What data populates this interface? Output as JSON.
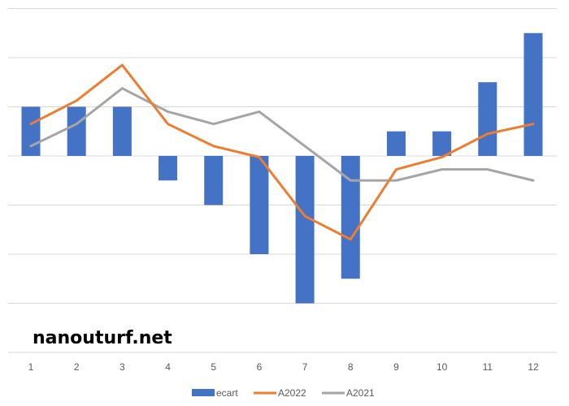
{
  "watermark": "nanouturf.net",
  "chart_data": {
    "type": "bar+line",
    "categories": [
      "1",
      "2",
      "3",
      "4",
      "5",
      "6",
      "7",
      "8",
      "9",
      "10",
      "11",
      "12"
    ],
    "series": [
      {
        "name": "ecart",
        "kind": "bar",
        "color": "#4472C4",
        "values": [
          2,
          2,
          2,
          -1,
          -2,
          -4,
          -6,
          -5,
          1,
          1,
          3,
          5
        ]
      },
      {
        "name": "A2022",
        "kind": "line",
        "color": "#ED7D31",
        "values": [
          1.3,
          2.25,
          3.7,
          1.3,
          0.4,
          -0.05,
          -2.45,
          -3.4,
          -0.55,
          -0.05,
          0.9,
          1.3
        ]
      },
      {
        "name": "A2021",
        "kind": "line",
        "color": "#A5A5A5",
        "values": [
          0.4,
          1.3,
          2.75,
          1.8,
          1.3,
          1.8,
          0.4,
          -1.0,
          -1.0,
          -0.55,
          -0.55,
          -1.0
        ]
      }
    ],
    "ylim": [
      -8,
      6
    ],
    "grid": true,
    "legend": "bottom"
  }
}
